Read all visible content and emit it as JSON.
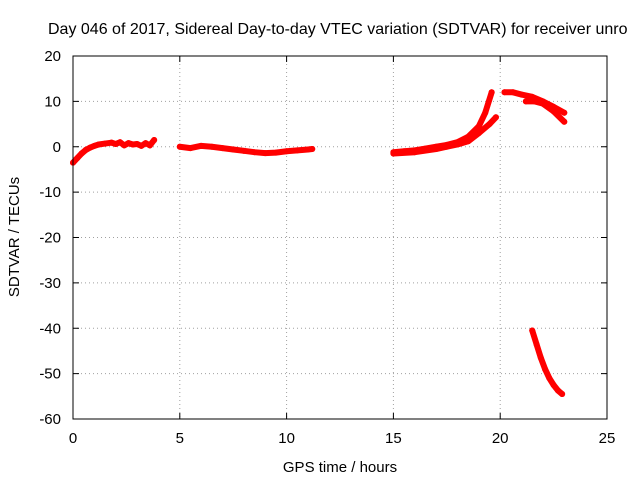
{
  "chart_data": {
    "type": "scatter",
    "title": "Day 046 of 2017, Sidereal Day-to-day VTEC variation (SDTVAR) for receiver unro",
    "xlabel": "GPS time / hours",
    "ylabel": "SDTVAR / TECUs",
    "xlim": [
      0,
      25
    ],
    "ylim": [
      -60,
      20
    ],
    "xticks": [
      0,
      5,
      10,
      15,
      20,
      25
    ],
    "yticks": [
      20,
      10,
      0,
      -10,
      -20,
      -30,
      -40,
      -50,
      -60
    ],
    "grid": true,
    "legend": "none",
    "series": [
      {
        "name": "segment-1",
        "color": "#ff0000",
        "x": [
          0.0,
          0.2,
          0.4,
          0.6,
          0.8,
          1.0,
          1.2,
          1.5,
          1.8,
          2.0,
          2.2,
          2.4,
          2.6,
          2.8,
          3.0,
          3.2,
          3.4,
          3.6,
          3.8
        ],
        "y": [
          -3.5,
          -2.5,
          -1.5,
          -0.7,
          -0.2,
          0.2,
          0.5,
          0.7,
          0.9,
          0.6,
          1.0,
          0.3,
          0.8,
          0.5,
          0.6,
          0.2,
          0.8,
          0.3,
          1.5
        ]
      },
      {
        "name": "segment-2",
        "color": "#ff0000",
        "x": [
          5.0,
          5.5,
          6.0,
          6.5,
          7.0,
          7.5,
          8.0,
          8.5,
          9.0,
          9.5,
          10.0,
          10.5,
          11.0,
          11.2
        ],
        "y": [
          0.0,
          -0.3,
          0.2,
          0.0,
          -0.3,
          -0.6,
          -0.9,
          -1.2,
          -1.4,
          -1.3,
          -1.0,
          -0.8,
          -0.6,
          -0.5
        ]
      },
      {
        "name": "segment-3a",
        "color": "#ff0000",
        "x": [
          15.0,
          15.5,
          16.0,
          16.5,
          17.0,
          17.5,
          18.0,
          18.5,
          19.0,
          19.3,
          19.6
        ],
        "y": [
          -1.2,
          -1.0,
          -0.8,
          -0.4,
          0.0,
          0.4,
          1.0,
          2.2,
          4.5,
          7.5,
          12.0
        ]
      },
      {
        "name": "segment-3b",
        "color": "#ff0000",
        "x": [
          15.0,
          16.0,
          17.0,
          17.5,
          18.0,
          18.5,
          19.0,
          19.5,
          19.8
        ],
        "y": [
          -1.5,
          -1.2,
          -0.5,
          0.0,
          0.5,
          1.2,
          3.0,
          5.0,
          6.5
        ]
      },
      {
        "name": "segment-4a",
        "color": "#ff0000",
        "x": [
          20.2,
          20.6,
          21.0,
          21.5,
          22.0,
          22.5,
          23.0
        ],
        "y": [
          12.0,
          12.0,
          11.5,
          11.0,
          10.0,
          8.8,
          7.5
        ]
      },
      {
        "name": "segment-4b",
        "color": "#ff0000",
        "x": [
          21.2,
          21.6,
          22.0,
          22.5,
          23.0
        ],
        "y": [
          10.0,
          10.0,
          9.5,
          7.8,
          5.5
        ]
      },
      {
        "name": "segment-5",
        "color": "#ff0000",
        "x": [
          21.5,
          21.7,
          21.9,
          22.1,
          22.3,
          22.5,
          22.7,
          22.9
        ],
        "y": [
          -40.5,
          -43.5,
          -46.5,
          -49.0,
          -51.0,
          -52.5,
          -53.7,
          -54.5
        ]
      }
    ]
  }
}
